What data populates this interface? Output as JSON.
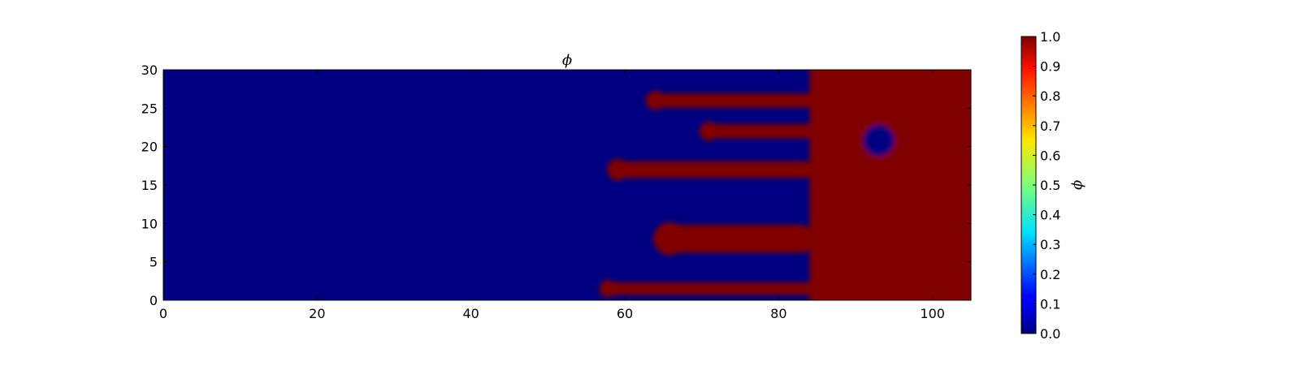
{
  "chart_data": {
    "type": "heatmap",
    "title": "ϕ",
    "xlabel": "",
    "ylabel": "",
    "xlim": [
      0,
      105
    ],
    "ylim": [
      0,
      30
    ],
    "x_ticks": [
      0,
      20,
      40,
      60,
      80,
      100
    ],
    "x_tick_labels": [
      "0",
      "20",
      "40",
      "60",
      "80",
      "100"
    ],
    "y_ticks": [
      0,
      5,
      10,
      15,
      20,
      25,
      30
    ],
    "y_tick_labels": [
      "0",
      "5",
      "10",
      "15",
      "20",
      "25",
      "30"
    ],
    "colormap": "jet",
    "colorbar": {
      "label": "ϕ",
      "range": [
        0.0,
        1.0
      ],
      "ticks": [
        0.0,
        0.1,
        0.2,
        0.3,
        0.4,
        0.5,
        0.6,
        0.7,
        0.8,
        0.9,
        1.0
      ],
      "tick_labels": [
        "0.0",
        "0.1",
        "0.2",
        "0.3",
        "0.4",
        "0.5",
        "0.6",
        "0.7",
        "0.8",
        "0.9",
        "1.0"
      ]
    },
    "field": {
      "background_value": 0.0,
      "region_value": 1.0,
      "bulk_region": {
        "x_min": 84,
        "x_max": 105,
        "y_min": 0,
        "y_max": 30
      },
      "inclusions_value": 0.0,
      "fingers": [
        {
          "y_center": 26.0,
          "tip_x": 63,
          "base_x": 84,
          "thickness": 1.2
        },
        {
          "y_center": 22.0,
          "tip_x": 70,
          "base_x": 84,
          "thickness": 1.2
        },
        {
          "y_center": 17.0,
          "tip_x": 58,
          "base_x": 84,
          "thickness": 1.5
        },
        {
          "y_center": 8.0,
          "tip_x": 64,
          "base_x": 84,
          "thickness": 3.0
        },
        {
          "y_center": 1.5,
          "tip_x": 57,
          "base_x": 92,
          "thickness": 1.0
        }
      ],
      "holes": [
        {
          "x": 93,
          "y": 20.8,
          "rx": 2.0,
          "ry": 2.0
        }
      ]
    }
  }
}
